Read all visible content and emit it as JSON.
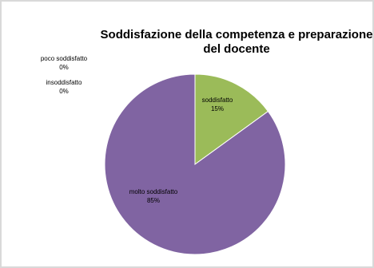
{
  "chart_data": {
    "type": "pie",
    "title": "Soddisfazione della competenza e preparazione\ndel docente",
    "slices": [
      {
        "label": "soddisfatto",
        "value": 15,
        "value_label": "15%",
        "color": "#9bbb59"
      },
      {
        "label": "molto soddisfatto",
        "value": 85,
        "value_label": "85%",
        "color": "#8064a2"
      },
      {
        "label": "insoddisfatto",
        "value": 0,
        "value_label": "0%",
        "color": "#c0504d"
      },
      {
        "label": "poco soddisfatto",
        "value": 0,
        "value_label": "0%",
        "color": "#4f81bd"
      }
    ],
    "start_angle_deg": 0,
    "direction": "clockwise",
    "legend": "none"
  }
}
